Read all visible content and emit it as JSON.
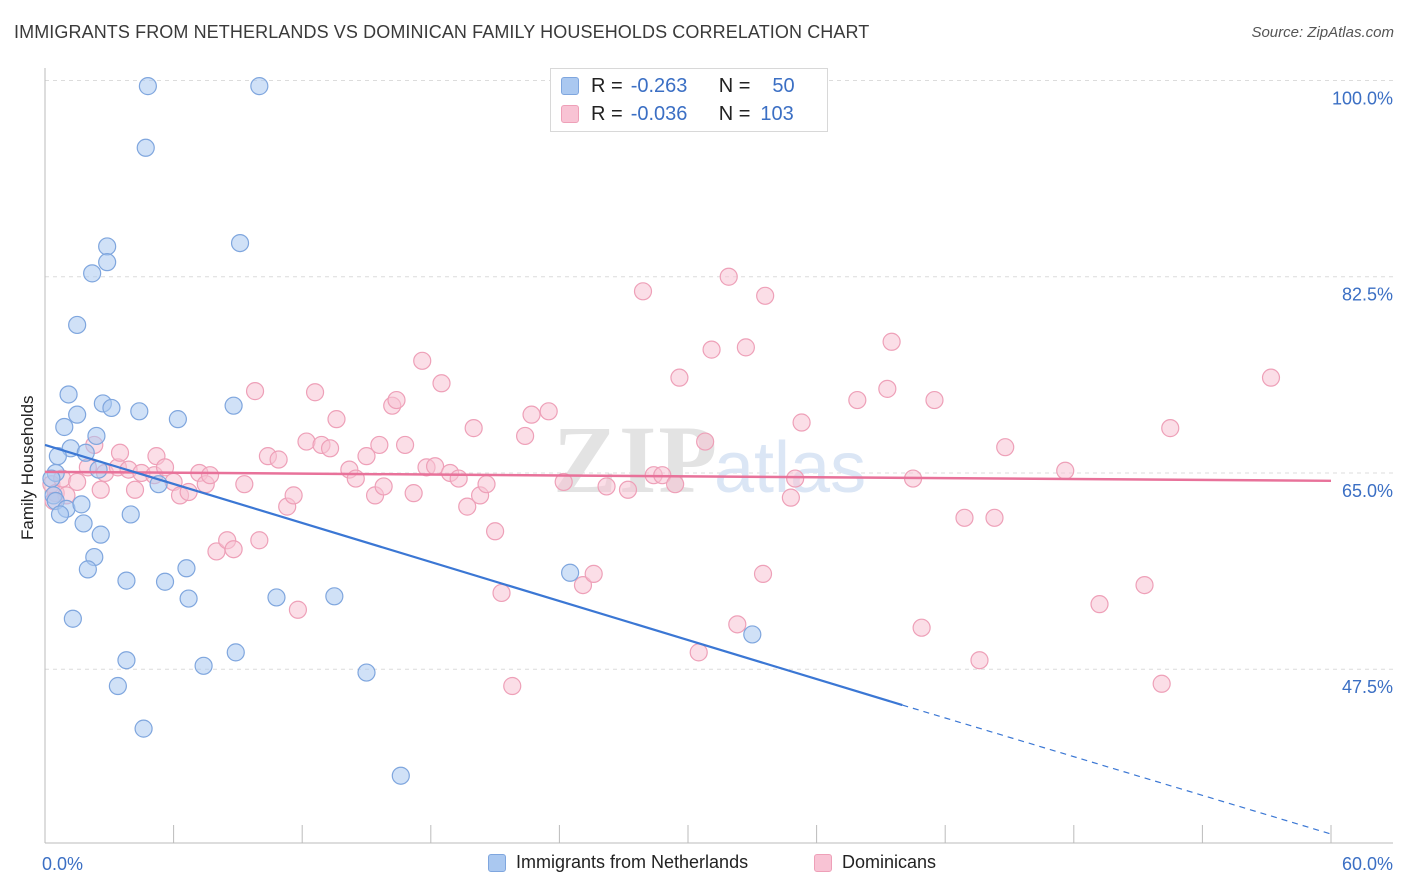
{
  "title": "IMMIGRANTS FROM NETHERLANDS VS DOMINICAN FAMILY HOUSEHOLDS CORRELATION CHART",
  "source": "Source: ZipAtlas.com",
  "watermark": {
    "zip": "ZIP",
    "atlas": "atlas"
  },
  "legend_top": {
    "rows": [
      {
        "r_label": "R =",
        "r_value": "-0.263",
        "n_label": "N =",
        "n_value": "50"
      },
      {
        "r_label": "R =",
        "r_value": "-0.036",
        "n_label": "N =",
        "n_value": "103"
      }
    ]
  },
  "legend_bottom": {
    "series1": "Immigrants from Netherlands",
    "series2": "Dominicans"
  },
  "colors": {
    "blue_fill": "#aac8f0",
    "blue_stroke": "#7fa6de",
    "blue_line": "#3b77d4",
    "pink_fill": "#f8c3d4",
    "pink_stroke": "#eea0b8",
    "pink_line": "#e8729a",
    "axis_label": "#3b6fc4",
    "grid": "#dcdcdc"
  },
  "chart_data": {
    "type": "scatter",
    "title": "IMMIGRANTS FROM NETHERLANDS VS DOMINICAN FAMILY HOUSEHOLDS CORRELATION CHART",
    "xlabel": "",
    "ylabel": "Family Households",
    "xlim": [
      0,
      60
    ],
    "ylim": [
      32,
      102
    ],
    "x_tick_labels": [
      "0.0%",
      "60.0%"
    ],
    "y_ticks": [
      47.5,
      65.0,
      82.5,
      100.0
    ],
    "y_tick_labels": [
      "47.5%",
      "65.0%",
      "82.5%",
      "100.0%"
    ],
    "grid": true,
    "legend_position": "top-center",
    "series": [
      {
        "name": "Immigrants from Netherlands",
        "color": "#aac8f0",
        "points": [
          [
            4.8,
            99.5
          ],
          [
            10.0,
            99.5
          ],
          [
            4.7,
            94.0
          ],
          [
            9.1,
            85.5
          ],
          [
            2.9,
            85.2
          ],
          [
            2.9,
            83.8
          ],
          [
            2.2,
            82.8
          ],
          [
            1.5,
            78.2
          ],
          [
            1.1,
            72.0
          ],
          [
            2.7,
            71.2
          ],
          [
            3.1,
            70.8
          ],
          [
            4.4,
            70.5
          ],
          [
            8.8,
            71.0
          ],
          [
            1.5,
            70.2
          ],
          [
            0.9,
            69.1
          ],
          [
            6.2,
            69.8
          ],
          [
            2.4,
            68.3
          ],
          [
            1.2,
            67.2
          ],
          [
            0.6,
            66.5
          ],
          [
            1.9,
            66.8
          ],
          [
            2.5,
            65.3
          ],
          [
            0.5,
            65.0
          ],
          [
            0.3,
            64.5
          ],
          [
            5.3,
            64.0
          ],
          [
            0.4,
            63.0
          ],
          [
            0.5,
            62.5
          ],
          [
            1.0,
            61.8
          ],
          [
            1.7,
            62.2
          ],
          [
            0.7,
            61.3
          ],
          [
            4.0,
            61.3
          ],
          [
            1.8,
            60.5
          ],
          [
            2.6,
            59.5
          ],
          [
            2.3,
            57.5
          ],
          [
            2.0,
            56.4
          ],
          [
            6.6,
            56.5
          ],
          [
            3.8,
            55.4
          ],
          [
            5.6,
            55.3
          ],
          [
            6.7,
            53.8
          ],
          [
            10.8,
            53.9
          ],
          [
            13.5,
            54.0
          ],
          [
            1.3,
            52.0
          ],
          [
            24.5,
            56.1
          ],
          [
            33.0,
            50.6
          ],
          [
            3.8,
            48.3
          ],
          [
            8.9,
            49.0
          ],
          [
            7.4,
            47.8
          ],
          [
            15.0,
            47.2
          ],
          [
            3.4,
            46.0
          ],
          [
            4.6,
            42.2
          ],
          [
            16.6,
            38.0
          ]
        ]
      },
      {
        "name": "Dominicans",
        "color": "#f8c3d4",
        "points": [
          [
            0.3,
            64.0
          ],
          [
            0.5,
            63.2
          ],
          [
            0.8,
            64.5
          ],
          [
            1.0,
            63.0
          ],
          [
            0.4,
            62.5
          ],
          [
            1.5,
            64.2
          ],
          [
            2.0,
            65.5
          ],
          [
            2.3,
            67.5
          ],
          [
            2.6,
            63.5
          ],
          [
            2.8,
            65.0
          ],
          [
            3.4,
            65.5
          ],
          [
            3.5,
            66.8
          ],
          [
            3.9,
            65.3
          ],
          [
            4.2,
            63.5
          ],
          [
            4.5,
            65.0
          ],
          [
            5.1,
            64.8
          ],
          [
            5.2,
            66.5
          ],
          [
            5.6,
            65.5
          ],
          [
            6.0,
            64.2
          ],
          [
            6.3,
            63.0
          ],
          [
            6.7,
            63.3
          ],
          [
            7.2,
            65.0
          ],
          [
            7.5,
            64.0
          ],
          [
            7.7,
            64.8
          ],
          [
            8.0,
            58.0
          ],
          [
            8.5,
            59.0
          ],
          [
            8.8,
            58.2
          ],
          [
            9.3,
            64.0
          ],
          [
            9.8,
            72.3
          ],
          [
            10.0,
            59.0
          ],
          [
            10.4,
            66.5
          ],
          [
            10.9,
            66.2
          ],
          [
            11.3,
            62.0
          ],
          [
            11.6,
            63.0
          ],
          [
            11.8,
            52.8
          ],
          [
            12.2,
            67.8
          ],
          [
            12.6,
            72.2
          ],
          [
            12.9,
            67.5
          ],
          [
            13.3,
            67.2
          ],
          [
            13.6,
            69.8
          ],
          [
            14.2,
            65.3
          ],
          [
            14.5,
            64.5
          ],
          [
            15.0,
            66.5
          ],
          [
            15.4,
            63.0
          ],
          [
            15.6,
            67.5
          ],
          [
            15.8,
            63.8
          ],
          [
            16.2,
            71.0
          ],
          [
            16.4,
            71.5
          ],
          [
            16.8,
            67.5
          ],
          [
            17.2,
            63.2
          ],
          [
            17.6,
            75.0
          ],
          [
            17.8,
            65.5
          ],
          [
            18.2,
            65.6
          ],
          [
            18.5,
            73.0
          ],
          [
            18.9,
            65.0
          ],
          [
            19.3,
            64.5
          ],
          [
            19.7,
            62.0
          ],
          [
            20.0,
            69.0
          ],
          [
            20.3,
            63.0
          ],
          [
            20.6,
            64.0
          ],
          [
            21.0,
            59.8
          ],
          [
            21.3,
            54.3
          ],
          [
            21.8,
            46.0
          ],
          [
            22.4,
            68.3
          ],
          [
            22.7,
            70.2
          ],
          [
            23.5,
            70.5
          ],
          [
            24.2,
            64.2
          ],
          [
            25.1,
            55.0
          ],
          [
            25.6,
            56.0
          ],
          [
            26.2,
            63.8
          ],
          [
            27.2,
            63.5
          ],
          [
            27.9,
            81.2
          ],
          [
            28.4,
            64.8
          ],
          [
            28.8,
            64.8
          ],
          [
            29.4,
            64.0
          ],
          [
            29.6,
            73.5
          ],
          [
            30.5,
            49.0
          ],
          [
            30.8,
            67.8
          ],
          [
            31.1,
            76.0
          ],
          [
            31.9,
            82.5
          ],
          [
            32.3,
            51.5
          ],
          [
            32.7,
            76.2
          ],
          [
            33.5,
            56.0
          ],
          [
            33.6,
            80.8
          ],
          [
            34.8,
            62.8
          ],
          [
            35.0,
            64.5
          ],
          [
            35.3,
            69.5
          ],
          [
            37.9,
            71.5
          ],
          [
            39.3,
            72.5
          ],
          [
            39.5,
            76.7
          ],
          [
            40.5,
            64.5
          ],
          [
            40.9,
            51.2
          ],
          [
            41.5,
            71.5
          ],
          [
            42.9,
            61.0
          ],
          [
            43.6,
            48.3
          ],
          [
            44.3,
            61.0
          ],
          [
            44.8,
            67.3
          ],
          [
            47.6,
            65.2
          ],
          [
            49.2,
            53.3
          ],
          [
            51.3,
            55.0
          ],
          [
            52.1,
            46.2
          ],
          [
            52.5,
            69.0
          ],
          [
            57.2,
            73.5
          ]
        ]
      }
    ],
    "trend_lines": [
      {
        "name": "Immigrants from Netherlands",
        "x_start": 0,
        "y_start": 67.5,
        "x_solid_end": 40.0,
        "y_solid_end": 44.3,
        "x_end": 60.0,
        "y_end": 32.8
      },
      {
        "name": "Dominicans",
        "x_start": 0,
        "y_start": 65.1,
        "x_end": 60.0,
        "y_end": 64.3
      }
    ]
  }
}
